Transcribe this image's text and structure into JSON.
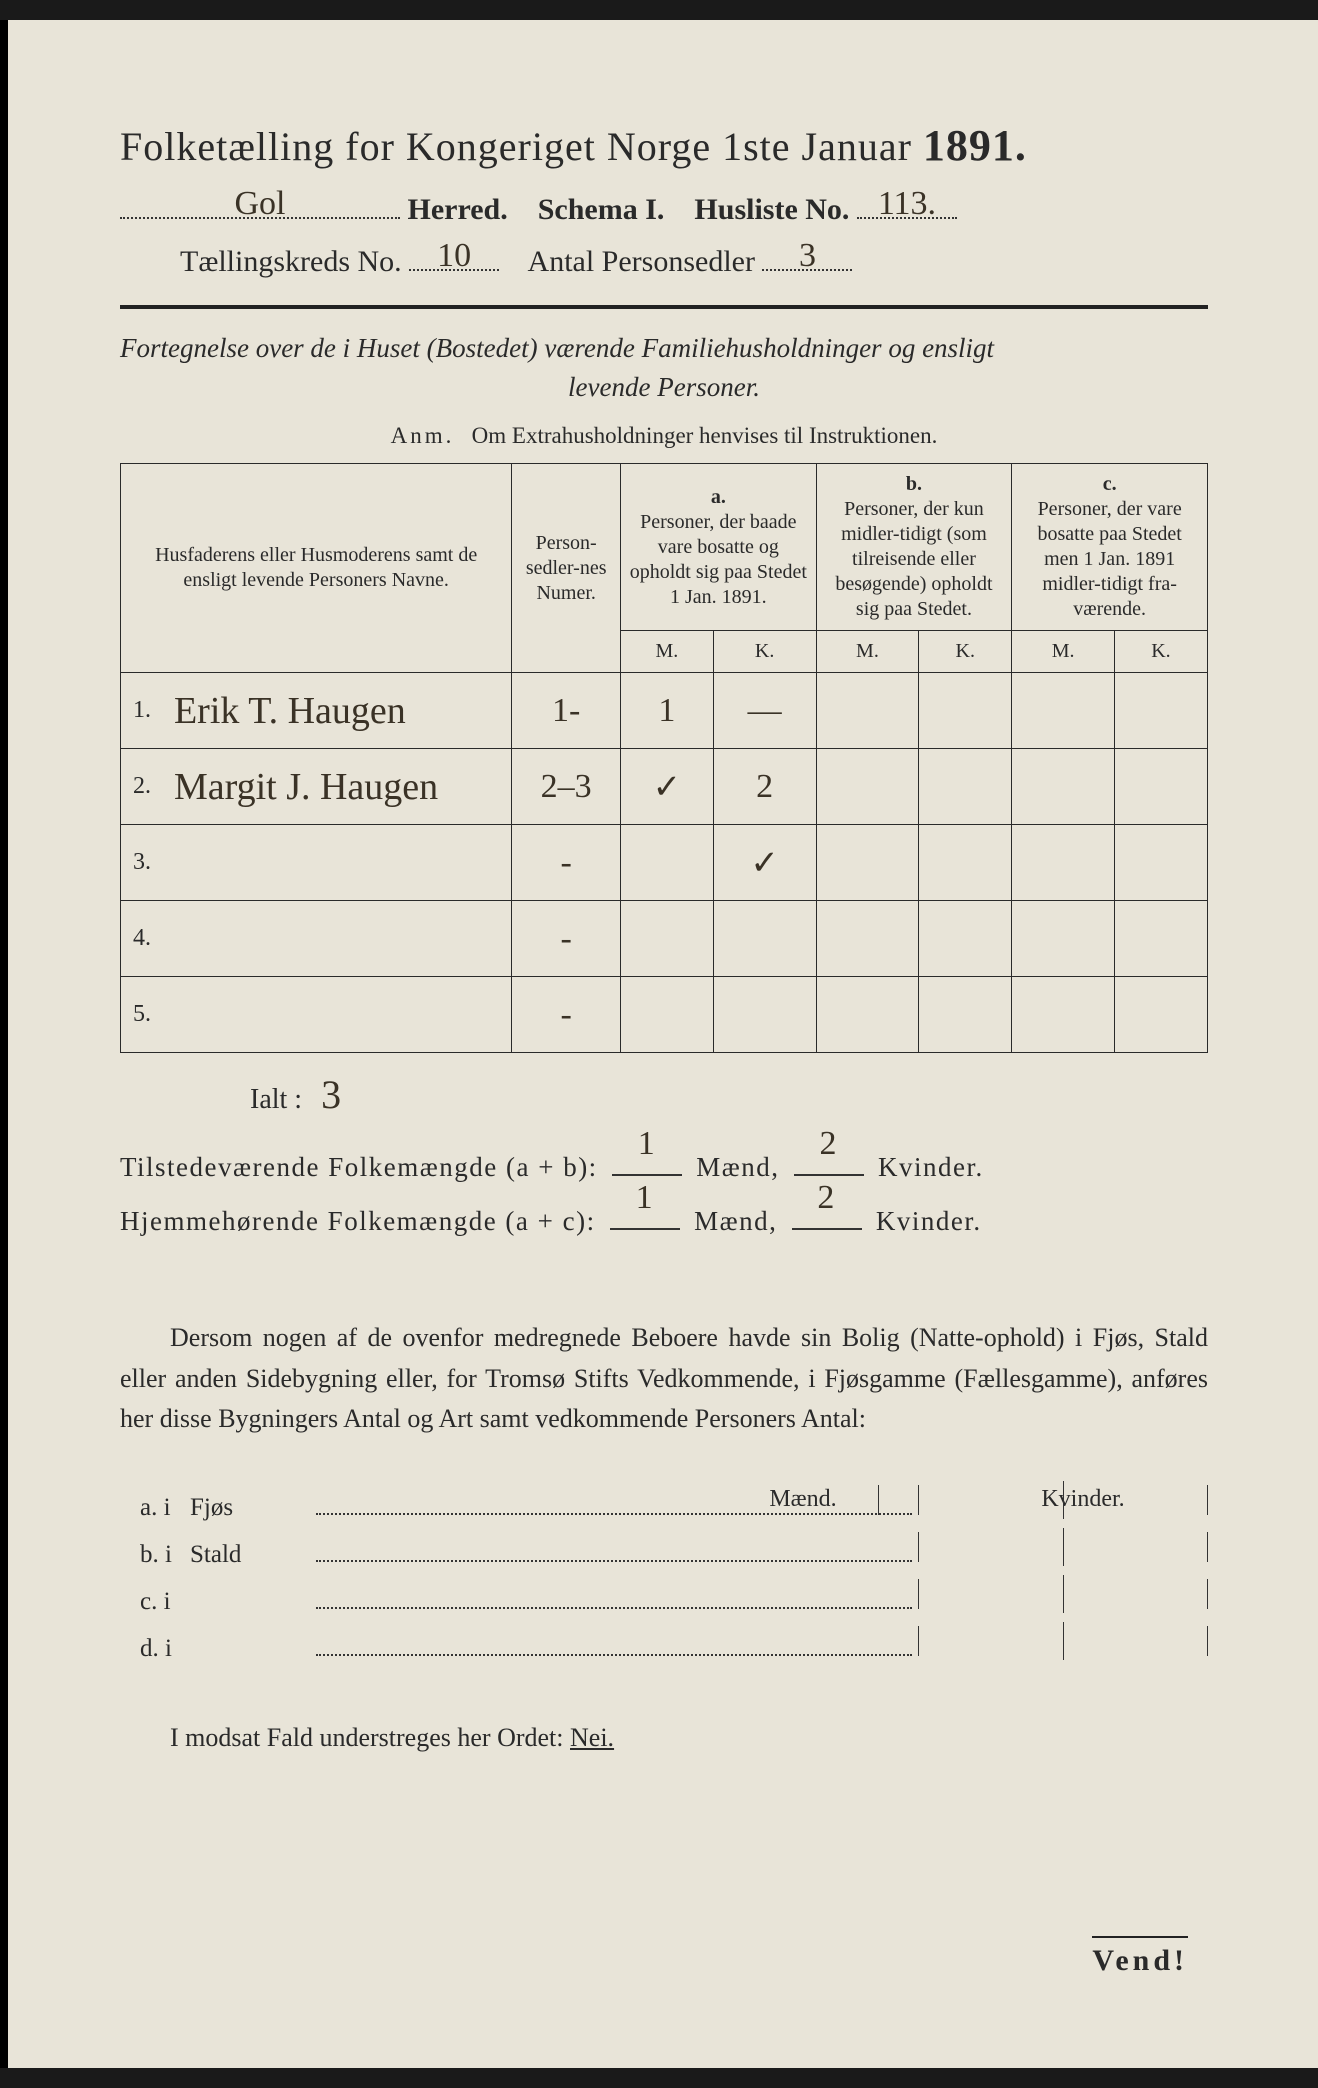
{
  "header": {
    "title_prefix": "Folketælling for Kongeriget Norge 1ste Januar",
    "year": "1891.",
    "herred_hw": "Gol",
    "herred_label": "Herred.",
    "schema_label": "Schema I.",
    "husliste_label": "Husliste No.",
    "husliste_hw": "113.",
    "kreds_label": "Tællingskreds No.",
    "kreds_hw": "10",
    "antal_label": "Antal Personsedler",
    "antal_hw": "3"
  },
  "subtitle": {
    "line1": "Fortegnelse over de i Huset (Bostedet) værende Familiehusholdninger og ensligt",
    "line2": "levende Personer.",
    "anm_label": "Anm.",
    "anm_text": "Om Extrahusholdninger henvises til Instruktionen."
  },
  "table": {
    "col_name": "Husfaderens eller Husmoderens samt de ensligt levende Personers Navne.",
    "col_num": "Person-sedler-nes Numer.",
    "col_a_letter": "a.",
    "col_a": "Personer, der baade vare bosatte og opholdt sig paa Stedet 1 Jan. 1891.",
    "col_b_letter": "b.",
    "col_b": "Personer, der kun midler-tidigt (som tilreisende eller besøgende) opholdt sig paa Stedet.",
    "col_c_letter": "c.",
    "col_c": "Personer, der vare bosatte paa Stedet men 1 Jan. 1891 midler-tidigt fra-værende.",
    "m": "M.",
    "k": "K.",
    "rows": [
      {
        "n": "1.",
        "name": "Erik T. Haugen",
        "num": "1-",
        "am": "1",
        "ak": "—",
        "bm": "",
        "bk": "",
        "cm": "",
        "ck": ""
      },
      {
        "n": "2.",
        "name": "Margit J. Haugen",
        "num": "2–3",
        "am": "✓",
        "ak": "2",
        "bm": "",
        "bk": "",
        "cm": "",
        "ck": ""
      },
      {
        "n": "3.",
        "name": "",
        "num": "-",
        "am": "",
        "ak": "✓",
        "bm": "",
        "bk": "",
        "cm": "",
        "ck": ""
      },
      {
        "n": "4.",
        "name": "",
        "num": "-",
        "am": "",
        "ak": "",
        "bm": "",
        "bk": "",
        "cm": "",
        "ck": ""
      },
      {
        "n": "5.",
        "name": "",
        "num": "-",
        "am": "",
        "ak": "",
        "bm": "",
        "bk": "",
        "cm": "",
        "ck": ""
      }
    ]
  },
  "totals": {
    "ialt_label": "Ialt :",
    "ialt_hw": "3",
    "line1_label": "Tilstedeværende Folkemængde (a + b):",
    "line1_m": "1",
    "line1_k": "2",
    "line2_label": "Hjemmehørende Folkemængde (a + c):",
    "line2_m": "1",
    "line2_k": "2",
    "maend": "Mænd,",
    "kvinder": "Kvinder."
  },
  "paragraph": "Dersom nogen af de ovenfor medregnede Beboere havde sin Bolig (Natte-ophold) i Fjøs, Stald eller anden Sidebygning eller, for Tromsø Stifts Vedkommende, i Fjøsgamme (Fællesgamme), anføres her disse Bygningers Antal og Art samt vedkommende Personers Antal:",
  "mk": {
    "m": "Mænd.",
    "k": "Kvinder."
  },
  "bldg": [
    {
      "lbl": "a.  i",
      "name": "Fjøs"
    },
    {
      "lbl": "b.  i",
      "name": "Stald"
    },
    {
      "lbl": "c.  i",
      "name": ""
    },
    {
      "lbl": "d.  i",
      "name": ""
    }
  ],
  "nei_line": "I modsat Fald understreges her Ordet:",
  "nei_word": "Nei.",
  "vend": "Vend!"
}
